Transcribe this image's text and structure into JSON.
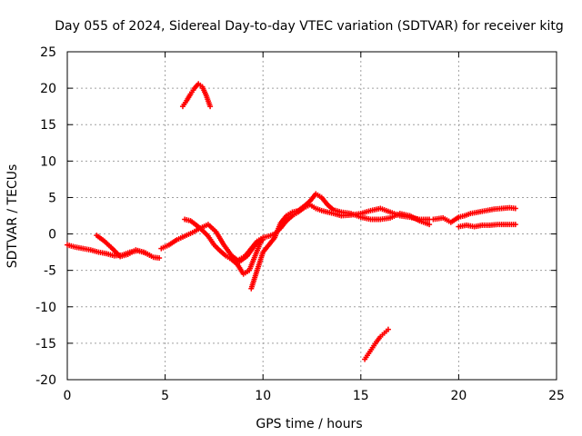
{
  "chart_data": {
    "type": "scatter",
    "title": "Day 055 of 2024, Sidereal Day-to-day VTEC variation (SDTVAR) for receiver kitg",
    "xlabel": "GPS time / hours",
    "ylabel": "SDTVAR / TECUs",
    "xlim": [
      0,
      25
    ],
    "ylim": [
      -20,
      25
    ],
    "xticks": [
      0,
      5,
      10,
      15,
      20,
      25
    ],
    "yticks": [
      -20,
      -15,
      -10,
      -5,
      0,
      5,
      10,
      15,
      20,
      25
    ],
    "xtick_labels": [
      "0",
      "5",
      "10",
      "15",
      "20",
      "25"
    ],
    "ytick_labels": [
      "-20",
      "-15",
      "-10",
      "-5",
      "0",
      "5",
      "10",
      "15",
      "20",
      "25"
    ],
    "grid": true,
    "marker": "+",
    "color": "#ff0000",
    "series": [
      {
        "name": "main-track-a",
        "x": [
          0,
          0.4,
          0.8,
          1.2,
          1.6,
          2.0,
          2.4,
          2.8,
          3.2,
          3.6,
          4.0,
          4.4,
          4.7
        ],
        "y": [
          -1.5,
          -1.8,
          -2.0,
          -2.2,
          -2.5,
          -2.7,
          -3.0,
          -2.9,
          -2.5,
          -2.3,
          -2.6,
          -3.2,
          -3.3
        ]
      },
      {
        "name": "main-track-b",
        "x": [
          1.5,
          1.9,
          2.3,
          2.7,
          3.1,
          3.5,
          3.9,
          4.2
        ],
        "y": [
          -0.2,
          -1.0,
          -2.0,
          -3.1,
          -2.8,
          -2.2,
          -2.5,
          -2.9
        ]
      },
      {
        "name": "main-track-c",
        "x": [
          4.8,
          5.2,
          5.6,
          6.0,
          6.4,
          6.8,
          7.2,
          7.6,
          8.0,
          8.4,
          8.8,
          9.2,
          9.6,
          10.0
        ],
        "y": [
          -2.0,
          -1.5,
          -0.8,
          -0.3,
          0.2,
          0.8,
          1.3,
          0.3,
          -1.5,
          -3.0,
          -3.8,
          -3.0,
          -1.5,
          -0.8
        ]
      },
      {
        "name": "main-track-d",
        "x": [
          6.0,
          6.3,
          6.6,
          6.9,
          7.2,
          7.5,
          7.8,
          8.1,
          8.4,
          8.7,
          9.0,
          9.3,
          9.6,
          9.9
        ],
        "y": [
          2.0,
          1.8,
          1.2,
          0.5,
          -0.3,
          -1.5,
          -2.3,
          -3.0,
          -3.5,
          -4.2,
          -5.5,
          -5.0,
          -3.0,
          -1.0
        ]
      },
      {
        "name": "main-track-e",
        "x": [
          8.8,
          9.1,
          9.4,
          9.7,
          10.0,
          10.3,
          10.6,
          10.9,
          11.2,
          11.5,
          11.8,
          12.1,
          12.4,
          12.7,
          13.0,
          13.3,
          13.6,
          14.0,
          14.5,
          15.0,
          15.5,
          16.0,
          16.5,
          17.0,
          17.5,
          18.0,
          18.5
        ],
        "y": [
          -3.5,
          -3.0,
          -2.0,
          -1.0,
          -0.5,
          -0.3,
          0.0,
          0.8,
          1.8,
          2.5,
          3.0,
          3.6,
          4.0,
          3.5,
          3.2,
          3.0,
          2.8,
          2.5,
          2.6,
          2.8,
          3.2,
          3.5,
          3.0,
          2.5,
          2.3,
          2.0,
          2.0
        ]
      },
      {
        "name": "main-track-f",
        "x": [
          9.4,
          9.7,
          10.0,
          10.3,
          10.6,
          10.9,
          11.2,
          11.5,
          11.8,
          12.1,
          12.4,
          12.7,
          13.0,
          13.3,
          13.6,
          14.0,
          14.5,
          15.0,
          15.5,
          16.0,
          16.5,
          17.0,
          17.5,
          18.0,
          18.5
        ],
        "y": [
          -7.5,
          -5.0,
          -2.5,
          -1.5,
          -0.5,
          1.5,
          2.5,
          3.0,
          3.2,
          3.8,
          4.5,
          5.5,
          5.0,
          4.0,
          3.3,
          3.0,
          2.8,
          2.3,
          2.0,
          2.0,
          2.2,
          2.8,
          2.5,
          1.8,
          1.3
        ]
      },
      {
        "name": "main-track-g",
        "x": [
          18.7,
          19.2,
          19.6,
          20.0,
          20.3,
          20.6,
          21.0,
          21.4,
          21.8,
          22.2,
          22.6,
          22.9
        ],
        "y": [
          2.0,
          2.2,
          1.6,
          2.3,
          2.5,
          2.8,
          3.0,
          3.2,
          3.4,
          3.5,
          3.6,
          3.5
        ]
      },
      {
        "name": "main-track-h",
        "x": [
          20.0,
          20.4,
          20.8,
          21.2,
          21.6,
          22.0,
          22.4,
          22.9
        ],
        "y": [
          1.0,
          1.2,
          1.0,
          1.2,
          1.2,
          1.3,
          1.3,
          1.3
        ]
      },
      {
        "name": "outlier-high",
        "x": [
          5.9,
          6.1,
          6.3,
          6.5,
          6.7,
          6.9,
          7.1,
          7.3
        ],
        "y": [
          17.5,
          18.3,
          19.2,
          20.0,
          20.6,
          20.2,
          19.0,
          17.5
        ]
      },
      {
        "name": "outlier-low",
        "x": [
          15.2,
          15.4,
          15.6,
          15.8,
          16.0,
          16.2,
          16.4
        ],
        "y": [
          -17.2,
          -16.4,
          -15.6,
          -14.8,
          -14.1,
          -13.6,
          -13.1
        ]
      }
    ]
  }
}
